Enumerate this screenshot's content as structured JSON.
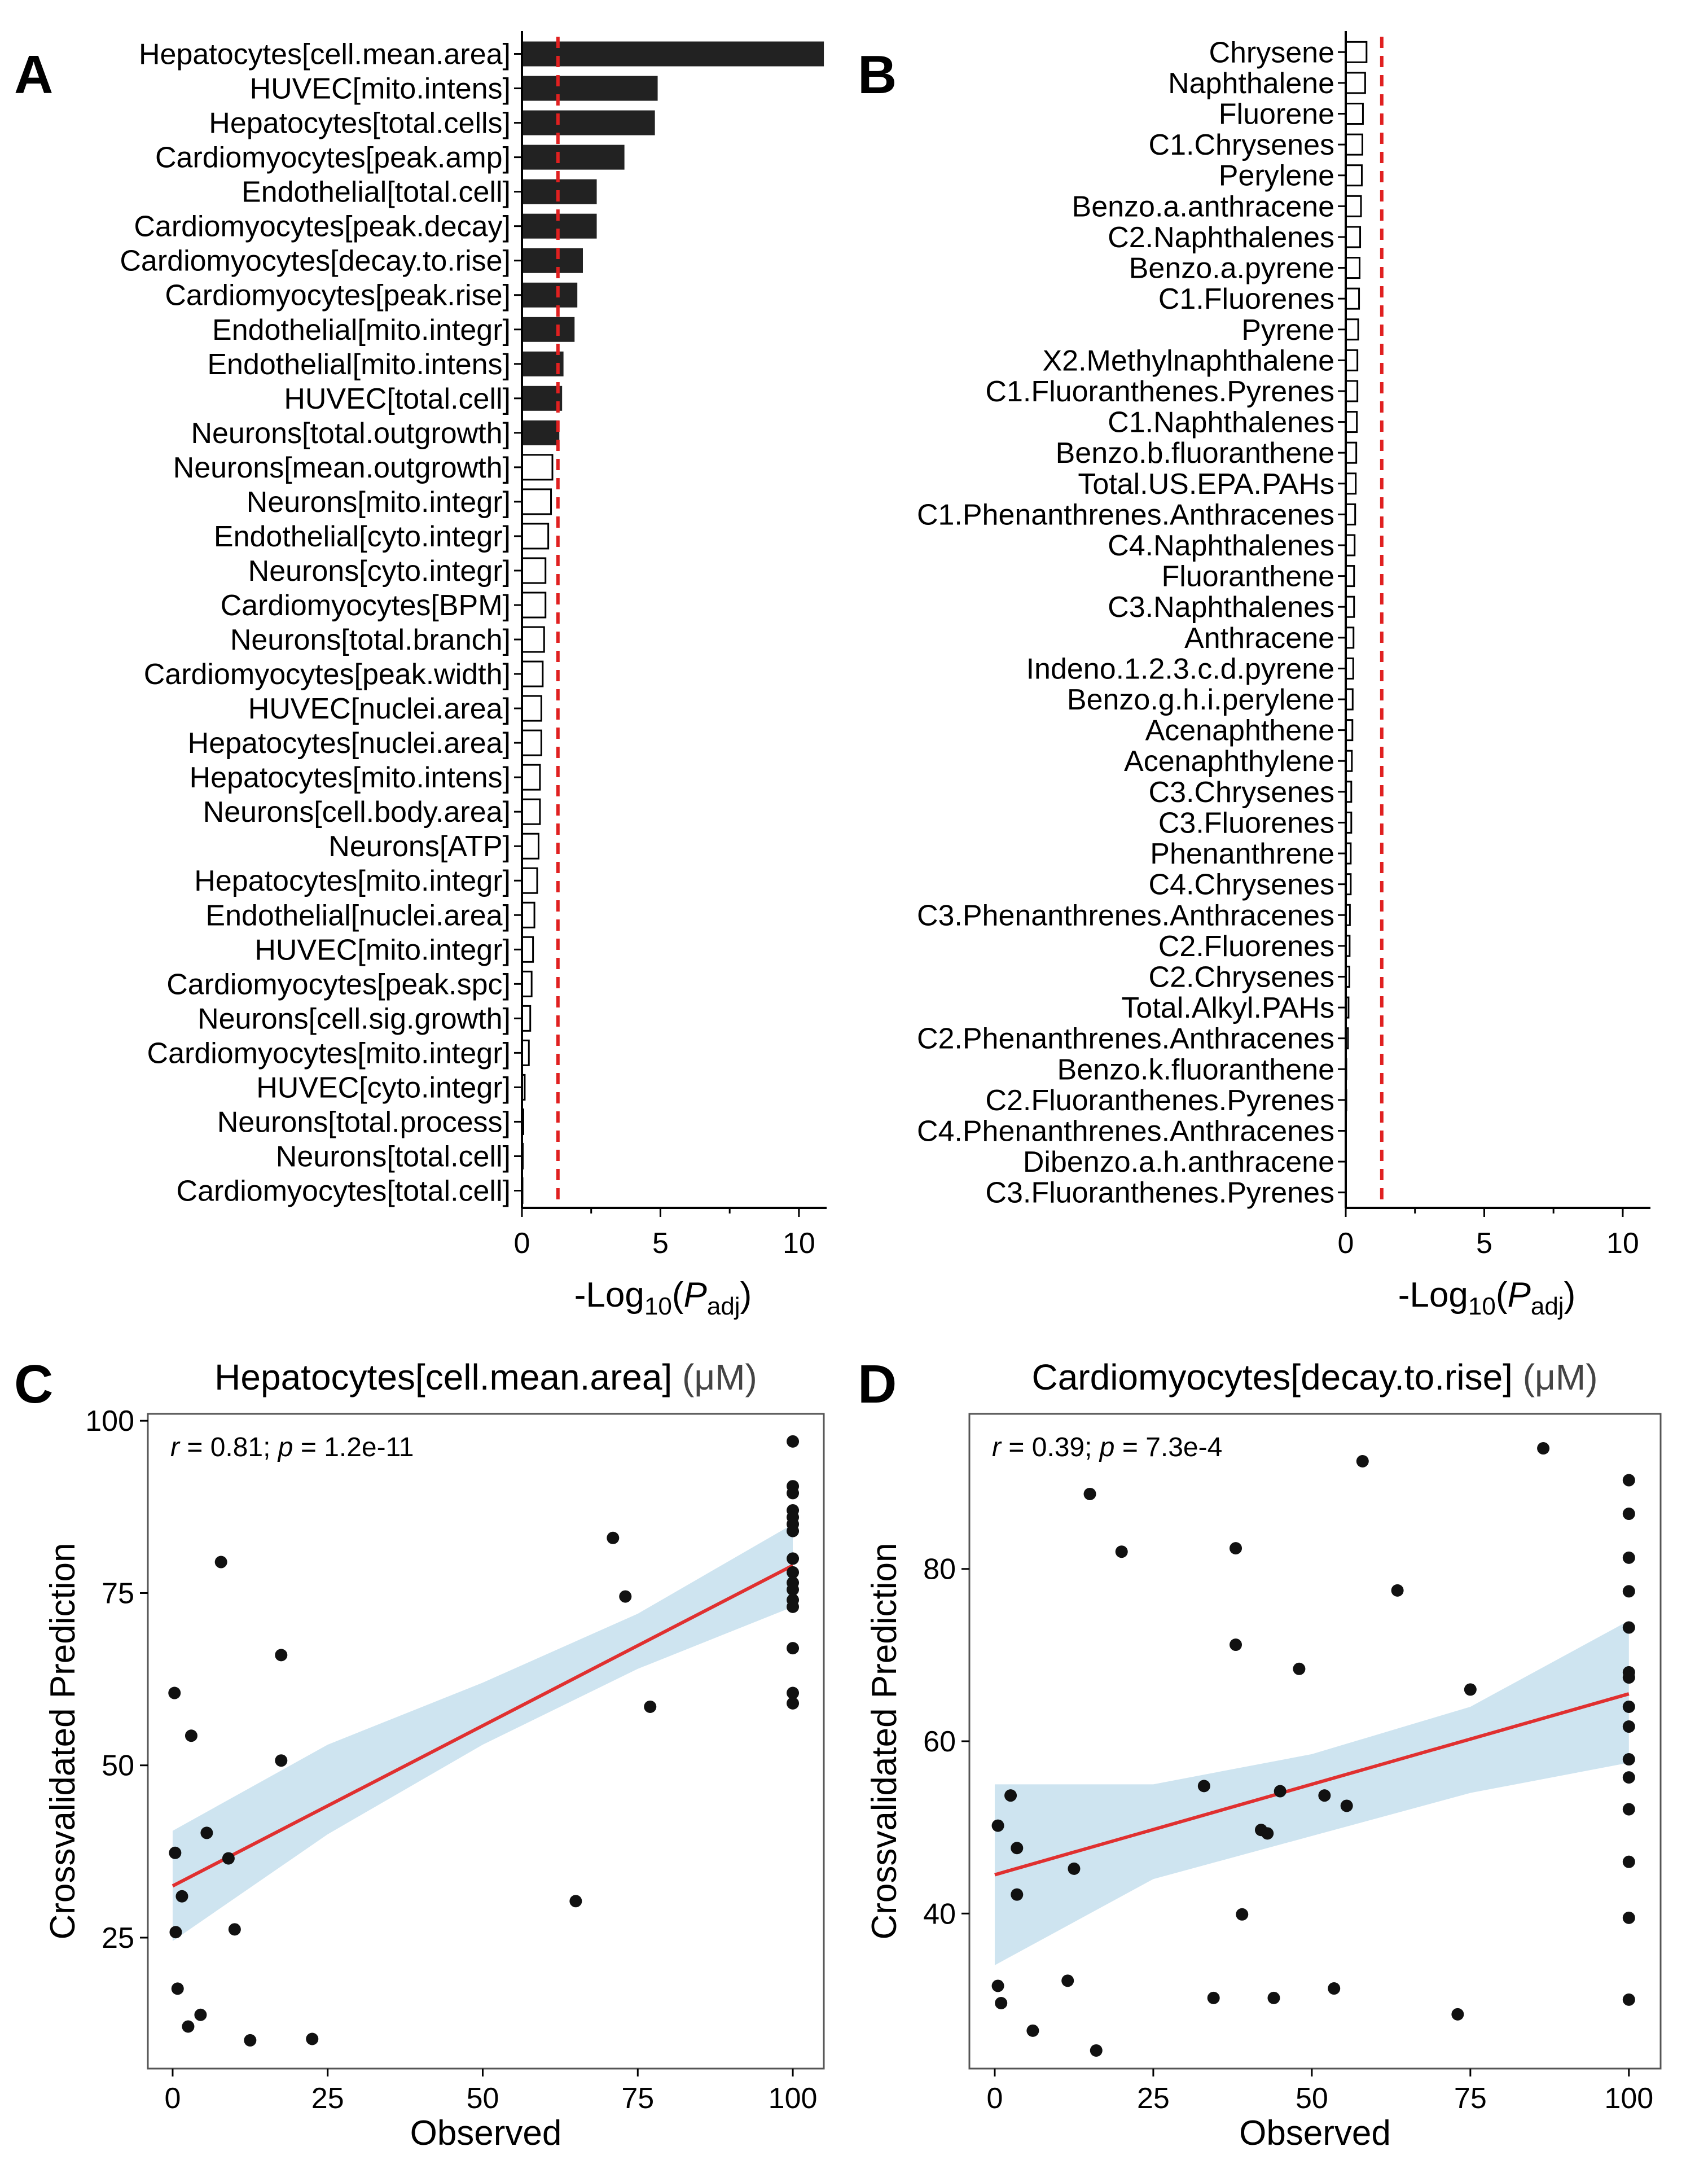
{
  "colors": {
    "significant_bar": "#222222",
    "threshold": "#e02020",
    "ci_band": "#b9d9ea",
    "fit_line": "#e03030",
    "points": "#111111"
  },
  "chart_data": [
    {
      "id": "A",
      "letter": "A",
      "type": "bar",
      "orientation": "horizontal",
      "categories": [
        "Hepatocytes[cell.mean.area]",
        "HUVEC[mito.intens]",
        "Hepatocytes[total.cells]",
        "Cardiomyocytes[peak.amp]",
        "Endothelial[total.cell]",
        "Cardiomyocytes[peak.decay]",
        "Cardiomyocytes[decay.to.rise]",
        "Cardiomyocytes[peak.rise]",
        "Endothelial[mito.integr]",
        "Endothelial[mito.intens]",
        "HUVEC[total.cell]",
        "Neurons[total.outgrowth]",
        "Neurons[mean.outgrowth]",
        "Neurons[mito.integr]",
        "Endothelial[cyto.integr]",
        "Neurons[cyto.integr]",
        "Cardiomyocytes[BPM]",
        "Neurons[total.branch]",
        "Cardiomyocytes[peak.width]",
        "HUVEC[nuclei.area]",
        "Hepatocytes[nuclei.area]",
        "Hepatocytes[mito.intens]",
        "Neurons[cell.body.area]",
        "Neurons[ATP]",
        "Hepatocytes[mito.integr]",
        "Endothelial[nuclei.area]",
        "HUVEC[mito.integr]",
        "Cardiomyocytes[peak.spc]",
        "Neurons[cell.sig.growth]",
        "Cardiomyocytes[mito.integr]",
        "HUVEC[cyto.integr]",
        "Neurons[total.process]",
        "Neurons[total.cell]",
        "Cardiomyocytes[total.cell]"
      ],
      "values": [
        10.9,
        4.9,
        4.8,
        3.7,
        2.7,
        2.7,
        2.2,
        2.0,
        1.9,
        1.5,
        1.45,
        1.35,
        1.1,
        1.05,
        0.95,
        0.85,
        0.85,
        0.8,
        0.75,
        0.7,
        0.7,
        0.65,
        0.65,
        0.6,
        0.55,
        0.45,
        0.4,
        0.35,
        0.3,
        0.25,
        0.1,
        0.05,
        0.03,
        0.02
      ],
      "significant": [
        true,
        true,
        true,
        true,
        true,
        true,
        true,
        true,
        true,
        true,
        true,
        true,
        false,
        false,
        false,
        false,
        false,
        false,
        false,
        false,
        false,
        false,
        false,
        false,
        false,
        false,
        false,
        false,
        false,
        false,
        false,
        false,
        false,
        false
      ],
      "threshold": 1.3,
      "xlim": [
        0,
        11
      ],
      "xticks": [
        0,
        5,
        10
      ],
      "xlabel": {
        "prefix": "-Log",
        "sub": "10",
        "open": "(",
        "italic": "P",
        "italic_sub": "adj",
        "close": ")"
      }
    },
    {
      "id": "B",
      "letter": "B",
      "type": "bar",
      "orientation": "horizontal",
      "categories": [
        "Chrysene",
        "Naphthalene",
        "Fluorene",
        "C1.Chrysenes",
        "Perylene",
        "Benzo.a.anthracene",
        "C2.Naphthalenes",
        "Benzo.a.pyrene",
        "C1.Fluorenes",
        "Pyrene",
        "X2.Methylnaphthalene",
        "C1.Fluoranthenes.Pyrenes",
        "C1.Naphthalenes",
        "Benzo.b.fluoranthene",
        "Total.US.EPA.PAHs",
        "C1.Phenanthrenes.Anthracenes",
        "C4.Naphthalenes",
        "Fluoranthene",
        "C3.Naphthalenes",
        "Anthracene",
        "Indeno.1.2.3.c.d.pyrene",
        "Benzo.g.h.i.perylene",
        "Acenaphthene",
        "Acenaphthylene",
        "C3.Chrysenes",
        "C3.Fluorenes",
        "Phenanthrene",
        "C4.Chrysenes",
        "C3.Phenanthrenes.Anthracenes",
        "C2.Fluorenes",
        "C2.Chrysenes",
        "Total.Alkyl.PAHs",
        "C2.Phenanthrenes.Anthracenes",
        "Benzo.k.fluoranthene",
        "C2.Fluoranthenes.Pyrenes",
        "C4.Phenanthrenes.Anthracenes",
        "Dibenzo.a.h.anthracene",
        "C3.Fluoranthenes.Pyrenes"
      ],
      "values": [
        0.75,
        0.7,
        0.62,
        0.6,
        0.58,
        0.55,
        0.52,
        0.5,
        0.48,
        0.45,
        0.42,
        0.42,
        0.4,
        0.38,
        0.36,
        0.34,
        0.32,
        0.3,
        0.3,
        0.28,
        0.27,
        0.25,
        0.24,
        0.22,
        0.2,
        0.2,
        0.18,
        0.18,
        0.15,
        0.14,
        0.13,
        0.1,
        0.08,
        0.02,
        0.02,
        0.01,
        0.01,
        0.01
      ],
      "significant": [
        false,
        false,
        false,
        false,
        false,
        false,
        false,
        false,
        false,
        false,
        false,
        false,
        false,
        false,
        false,
        false,
        false,
        false,
        false,
        false,
        false,
        false,
        false,
        false,
        false,
        false,
        false,
        false,
        false,
        false,
        false,
        false,
        false,
        false,
        false,
        false,
        false,
        false
      ],
      "threshold": 1.3,
      "xlim": [
        0,
        11
      ],
      "xticks": [
        0,
        5,
        10
      ],
      "xlabel": {
        "prefix": "-Log",
        "sub": "10",
        "open": "(",
        "italic": "P",
        "italic_sub": "adj",
        "close": ")"
      }
    },
    {
      "id": "C",
      "letter": "C",
      "type": "scatter",
      "title": "Hepatocytes[cell.mean.area]",
      "title_unit": "(μM)",
      "stat": {
        "r_label": "r",
        "r_value": " = 0.81; ",
        "p_label": "p",
        "p_value": " = 1.2e-11"
      },
      "xlabel": "Observed",
      "ylabel": "Crossvalidated Prediction",
      "xlim": [
        -4,
        105
      ],
      "ylim": [
        6,
        101
      ],
      "xticks": [
        0,
        25,
        50,
        75,
        100
      ],
      "yticks": [
        25,
        50,
        75,
        100
      ],
      "fit": {
        "x0": 0,
        "y0": 32.5,
        "x1": 100,
        "y1": 79
      },
      "ci": {
        "x": [
          0,
          25,
          50,
          75,
          100
        ],
        "lower": [
          24.5,
          40,
          53,
          64,
          73
        ],
        "upper": [
          40.5,
          53,
          62,
          72,
          85
        ]
      },
      "points": [
        [
          0.3,
          60.5
        ],
        [
          3,
          54.3
        ],
        [
          7.8,
          79.5
        ],
        [
          17.5,
          66
        ],
        [
          17.5,
          50.7
        ],
        [
          5.5,
          40.2
        ],
        [
          9,
          36.5
        ],
        [
          0.4,
          37.3
        ],
        [
          1.5,
          31
        ],
        [
          0.5,
          25.8
        ],
        [
          10,
          26.2
        ],
        [
          0.8,
          17.6
        ],
        [
          2.5,
          12.1
        ],
        [
          4.5,
          13.8
        ],
        [
          12.5,
          10.1
        ],
        [
          22.5,
          10.3
        ],
        [
          65,
          30.3
        ],
        [
          71,
          83
        ],
        [
          73,
          74.5
        ],
        [
          77,
          58.5
        ],
        [
          100,
          97
        ],
        [
          100,
          90.5
        ],
        [
          100,
          89.5
        ],
        [
          100,
          87
        ],
        [
          100,
          86
        ],
        [
          100,
          85
        ],
        [
          100,
          84
        ],
        [
          100,
          80
        ],
        [
          100,
          78
        ],
        [
          100,
          76.5
        ],
        [
          100,
          75.5
        ],
        [
          100,
          74
        ],
        [
          100,
          73
        ],
        [
          100,
          67
        ],
        [
          100,
          60.5
        ],
        [
          100,
          59
        ]
      ]
    },
    {
      "id": "D",
      "letter": "D",
      "type": "scatter",
      "title": "Cardiomyocytes[decay.to.rise]",
      "title_unit": "(μM)",
      "stat": {
        "r_label": "r",
        "r_value": " = 0.39; ",
        "p_label": "p",
        "p_value": " = 7.3e-4"
      },
      "xlabel": "Observed",
      "ylabel": "Crossvalidated Prediction",
      "xlim": [
        -4,
        105
      ],
      "ylim": [
        22,
        98
      ],
      "xticks": [
        0,
        25,
        50,
        75,
        100
      ],
      "yticks": [
        40,
        60,
        80
      ],
      "fit": {
        "x0": 0,
        "y0": 44.5,
        "x1": 100,
        "y1": 65.5
      },
      "ci": {
        "x": [
          0,
          25,
          50,
          75,
          100
        ],
        "lower": [
          34,
          44,
          49,
          54,
          57.5
        ],
        "upper": [
          55,
          55,
          58.5,
          64,
          74
        ]
      },
      "points": [
        [
          0.5,
          50.2
        ],
        [
          2.5,
          53.7
        ],
        [
          3.5,
          47.6
        ],
        [
          3.5,
          42.2
        ],
        [
          12.5,
          45.2
        ],
        [
          0.5,
          31.6
        ],
        [
          1,
          29.6
        ],
        [
          6,
          26.4
        ],
        [
          11.5,
          32.2
        ],
        [
          16,
          24.1
        ],
        [
          15,
          88.7
        ],
        [
          20,
          82
        ],
        [
          33,
          54.8
        ],
        [
          34.5,
          30.2
        ],
        [
          38,
          82.4
        ],
        [
          38,
          71.2
        ],
        [
          39,
          39.9
        ],
        [
          42,
          49.7
        ],
        [
          43,
          49.3
        ],
        [
          44,
          30.2
        ],
        [
          45,
          54.2
        ],
        [
          48,
          68.4
        ],
        [
          52,
          53.7
        ],
        [
          53.5,
          31.3
        ],
        [
          55.5,
          52.5
        ],
        [
          58,
          92.5
        ],
        [
          63.5,
          77.5
        ],
        [
          73,
          28.3
        ],
        [
          75,
          66
        ],
        [
          86.5,
          94
        ],
        [
          100,
          90.3
        ],
        [
          100,
          86.4
        ],
        [
          100,
          81.3
        ],
        [
          100,
          77.4
        ],
        [
          100,
          73.2
        ],
        [
          100,
          68
        ],
        [
          100,
          67.4
        ],
        [
          100,
          64
        ],
        [
          100,
          61.7
        ],
        [
          100,
          57.9
        ],
        [
          100,
          55.8
        ],
        [
          100,
          52.1
        ],
        [
          100,
          46
        ],
        [
          100,
          39.5
        ],
        [
          100,
          30
        ]
      ]
    }
  ]
}
